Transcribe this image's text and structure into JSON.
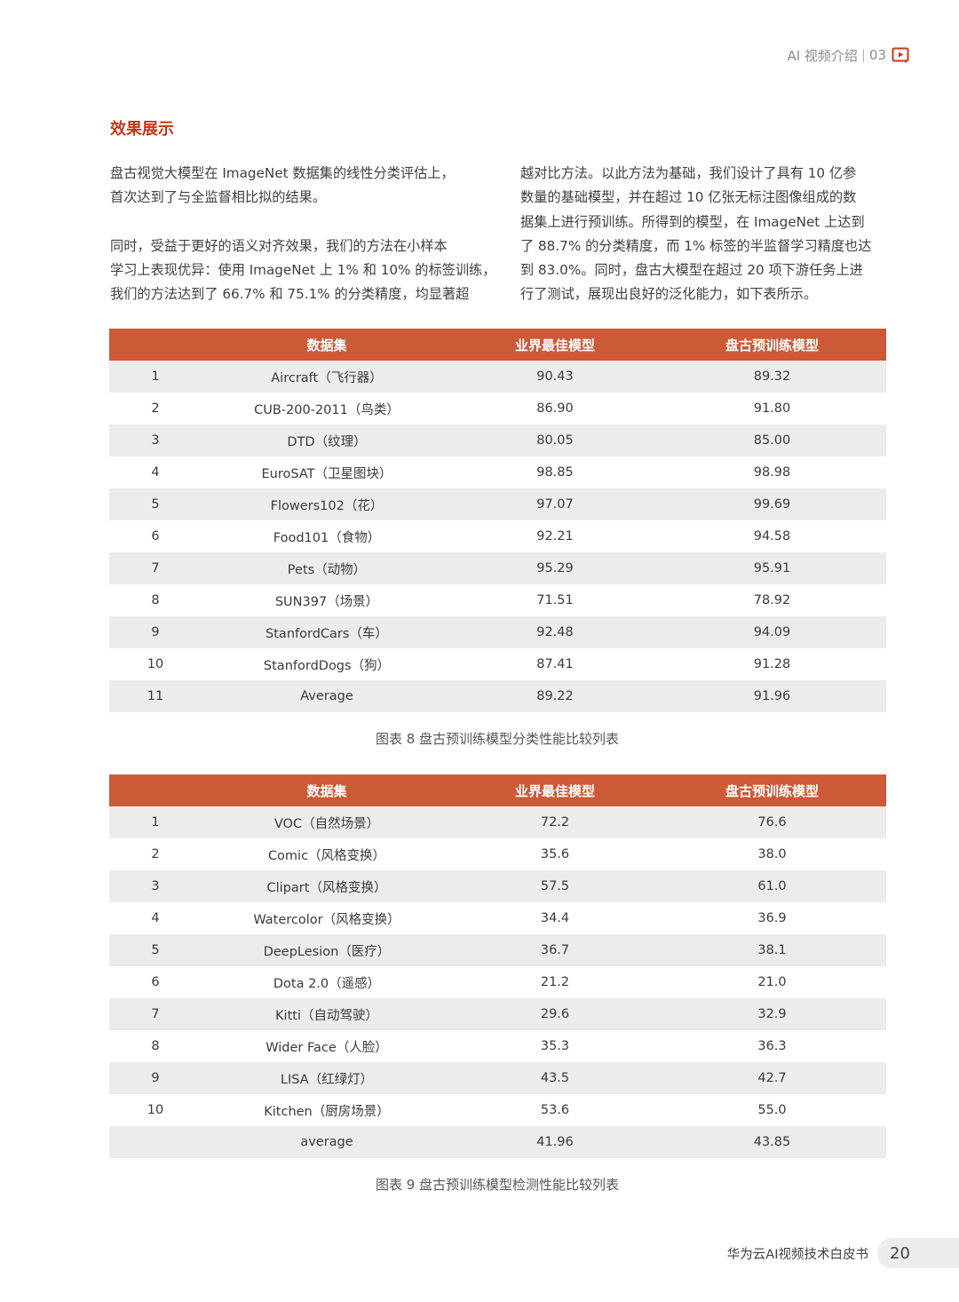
{
  "header": {
    "section": "AI 视频介绍",
    "chapter": "03",
    "icon": "video-play-icon",
    "accent_color": "#c23a1c"
  },
  "title": "效果展示",
  "paragraphs_left": [
    "盘古视觉大模型在 ImageNet 数据集的线性分类评估上，",
    "首次达到了与全监督相比拟的结果。",
    "",
    "同时，受益于更好的语义对齐效果，我们的方法在小样本",
    "学习上表现优异：使用 ImageNet 上 1% 和 10% 的标签训练，",
    "我们的方法达到了 66.7% 和 75.1% 的分类精度，均显著超"
  ],
  "paragraphs_right": [
    "越对比方法。以此方法为基础，我们设计了具有 10 亿参",
    "数量的基础模型，并在超过 10 亿张无标注图像组成的数",
    "据集上进行预训练。所得到的模型，在 ImageNet 上达到",
    "了 88.7% 的分类精度，而 1% 标签的半监督学习精度也达",
    "到 83.0%。同时，盘古大模型在超过 20 项下游任务上进",
    "行了测试，展现出良好的泛化能力，如下表所示。"
  ],
  "table1": {
    "headers": [
      "",
      "数据集",
      "业界最佳模型",
      "盘古预训练模型"
    ],
    "header_color": "#cc5a36",
    "rows": [
      [
        "1",
        "Aircraft（飞行器）",
        "90.43",
        "89.32"
      ],
      [
        "2",
        "CUB-200-2011（鸟类）",
        "86.90",
        "91.80"
      ],
      [
        "3",
        "DTD（纹理）",
        "80.05",
        "85.00"
      ],
      [
        "4",
        "EuroSAT（卫星图块）",
        "98.85",
        "98.98"
      ],
      [
        "5",
        "Flowers102（花）",
        "97.07",
        "99.69"
      ],
      [
        "6",
        "Food101（食物）",
        "92.21",
        "94.58"
      ],
      [
        "7",
        "Pets（动物）",
        "95.29",
        "95.91"
      ],
      [
        "8",
        "SUN397（场景）",
        "71.51",
        "78.92"
      ],
      [
        "9",
        "StanfordCars（车）",
        "92.48",
        "94.09"
      ],
      [
        "10",
        "StanfordDogs（狗）",
        "87.41",
        "91.28"
      ],
      [
        "11",
        "Average",
        "89.22",
        "91.96"
      ]
    ],
    "caption": "图表 8 盘古预训练模型分类性能比较列表"
  },
  "table2": {
    "headers": [
      "",
      "数据集",
      "业界最佳模型",
      "盘古预训练模型"
    ],
    "header_color": "#cc5a36",
    "rows": [
      [
        "1",
        "VOC（自然场景）",
        "72.2",
        "76.6"
      ],
      [
        "2",
        "Comic（风格变换）",
        "35.6",
        "38.0"
      ],
      [
        "3",
        "Clipart（风格变换）",
        "57.5",
        "61.0"
      ],
      [
        "4",
        "Watercolor（风格变换）",
        "34.4",
        "36.9"
      ],
      [
        "5",
        "DeepLesion（医疗）",
        "36.7",
        "38.1"
      ],
      [
        "6",
        "Dota 2.0（遥感）",
        "21.2",
        "21.0"
      ],
      [
        "7",
        "Kitti（自动驾驶）",
        "29.6",
        "32.9"
      ],
      [
        "8",
        "Wider Face（人脸）",
        "35.3",
        "36.3"
      ],
      [
        "9",
        "LISA（红绿灯）",
        "43.5",
        "42.7"
      ],
      [
        "10",
        "Kitchen（厨房场景）",
        "53.6",
        "55.0"
      ],
      [
        "",
        "average",
        "41.96",
        "43.85"
      ]
    ],
    "caption": "图表 9 盘古预训练模型检测性能比较列表"
  },
  "footer": {
    "book_title": "华为云AI视频技术白皮书",
    "page_number": "20"
  }
}
